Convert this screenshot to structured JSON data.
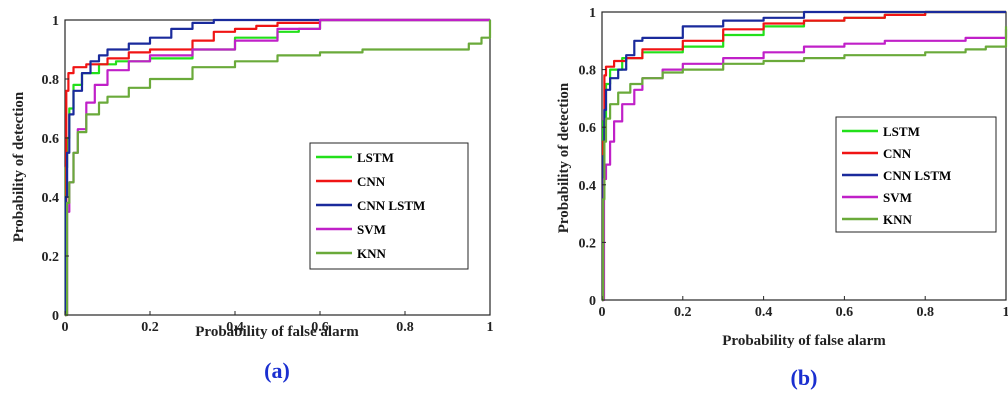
{
  "chart_data": [
    {
      "type": "line",
      "panel_label": "(a)",
      "xlabel": "Probability of false alarm",
      "ylabel": "Probability of detection",
      "xlim": [
        0,
        1
      ],
      "ylim": [
        0,
        1
      ],
      "xticks": [
        "0",
        "0.2",
        "0.4",
        "0.6",
        "0.8",
        "1"
      ],
      "yticks": [
        "0",
        "0.2",
        "0.4",
        "0.6",
        "0.8",
        "1"
      ],
      "grid": false,
      "legend_position": "center-right",
      "series": [
        {
          "name": "LSTM",
          "color": "#22e01a",
          "x": [
            0,
            0.002,
            0.005,
            0.01,
            0.02,
            0.04,
            0.08,
            0.12,
            0.2,
            0.3,
            0.4,
            0.5,
            0.55,
            0.6,
            0.8,
            1
          ],
          "y": [
            0,
            0.5,
            0.6,
            0.7,
            0.78,
            0.82,
            0.85,
            0.86,
            0.87,
            0.9,
            0.94,
            0.96,
            0.97,
            1.0,
            1.0,
            1.0
          ]
        },
        {
          "name": "CNN",
          "color": "#f01414",
          "x": [
            0,
            0.003,
            0.008,
            0.02,
            0.05,
            0.1,
            0.15,
            0.2,
            0.3,
            0.35,
            0.4,
            0.45,
            0.5,
            0.6,
            0.8,
            1
          ],
          "y": [
            0,
            0.76,
            0.82,
            0.84,
            0.85,
            0.87,
            0.89,
            0.9,
            0.93,
            0.96,
            0.97,
            0.98,
            0.99,
            1.0,
            1.0,
            1.0
          ]
        },
        {
          "name": "CNN LSTM",
          "color": "#1a2a9c",
          "x": [
            0,
            0.002,
            0.005,
            0.01,
            0.02,
            0.04,
            0.06,
            0.08,
            0.1,
            0.15,
            0.2,
            0.25,
            0.3,
            0.35,
            0.4,
            0.5,
            0.6,
            0.8,
            1
          ],
          "y": [
            0,
            0.4,
            0.55,
            0.68,
            0.76,
            0.82,
            0.86,
            0.88,
            0.9,
            0.92,
            0.94,
            0.97,
            0.99,
            1.0,
            1.0,
            1.0,
            1.0,
            1.0,
            1.0
          ]
        },
        {
          "name": "SVM",
          "color": "#c020c8",
          "x": [
            0,
            0.005,
            0.01,
            0.02,
            0.03,
            0.05,
            0.07,
            0.1,
            0.15,
            0.2,
            0.3,
            0.4,
            0.5,
            0.6,
            0.8,
            1
          ],
          "y": [
            0,
            0.35,
            0.45,
            0.55,
            0.63,
            0.72,
            0.78,
            0.83,
            0.86,
            0.88,
            0.9,
            0.93,
            0.97,
            1.0,
            1.0,
            1.0
          ]
        },
        {
          "name": "KNN",
          "color": "#6aaa3a",
          "x": [
            0,
            0.005,
            0.01,
            0.02,
            0.03,
            0.05,
            0.08,
            0.1,
            0.15,
            0.2,
            0.3,
            0.4,
            0.5,
            0.6,
            0.7,
            0.8,
            0.9,
            0.95,
            0.98,
            1
          ],
          "y": [
            0,
            0.38,
            0.45,
            0.55,
            0.62,
            0.68,
            0.72,
            0.74,
            0.77,
            0.8,
            0.84,
            0.86,
            0.88,
            0.89,
            0.9,
            0.9,
            0.9,
            0.92,
            0.94,
            1.0
          ]
        }
      ]
    },
    {
      "type": "line",
      "panel_label": "(b)",
      "xlabel": "Probability of false alarm",
      "ylabel": "Probability of detection",
      "xlim": [
        0,
        1
      ],
      "ylim": [
        0,
        1
      ],
      "xticks": [
        "0",
        "0.2",
        "0.4",
        "0.6",
        "0.8",
        "1"
      ],
      "yticks": [
        "0",
        "0.2",
        "0.4",
        "0.6",
        "0.8",
        "1"
      ],
      "grid": false,
      "legend_position": "center-right",
      "series": [
        {
          "name": "LSTM",
          "color": "#22e01a",
          "x": [
            0,
            0.003,
            0.01,
            0.02,
            0.05,
            0.1,
            0.2,
            0.3,
            0.4,
            0.5,
            0.6,
            0.7,
            0.8,
            1
          ],
          "y": [
            0,
            0.62,
            0.75,
            0.8,
            0.84,
            0.86,
            0.88,
            0.92,
            0.95,
            0.97,
            0.98,
            0.99,
            1.0,
            1.0
          ]
        },
        {
          "name": "CNN",
          "color": "#f01414",
          "x": [
            0,
            0.003,
            0.006,
            0.01,
            0.03,
            0.06,
            0.1,
            0.2,
            0.3,
            0.4,
            0.5,
            0.6,
            0.7,
            0.8,
            1
          ],
          "y": [
            0,
            0.55,
            0.78,
            0.81,
            0.83,
            0.84,
            0.87,
            0.9,
            0.94,
            0.96,
            0.97,
            0.98,
            0.99,
            1.0,
            1.0
          ]
        },
        {
          "name": "CNN LSTM",
          "color": "#1a2a9c",
          "x": [
            0,
            0.003,
            0.006,
            0.01,
            0.02,
            0.04,
            0.06,
            0.08,
            0.1,
            0.2,
            0.3,
            0.4,
            0.5,
            0.8,
            1
          ],
          "y": [
            0,
            0.5,
            0.66,
            0.73,
            0.77,
            0.8,
            0.85,
            0.9,
            0.91,
            0.95,
            0.97,
            0.98,
            1.0,
            1.0,
            1.0
          ]
        },
        {
          "name": "SVM",
          "color": "#c020c8",
          "x": [
            0,
            0.005,
            0.01,
            0.02,
            0.03,
            0.05,
            0.08,
            0.1,
            0.15,
            0.2,
            0.3,
            0.4,
            0.5,
            0.6,
            0.7,
            0.8,
            0.9,
            1
          ],
          "y": [
            0,
            0.42,
            0.47,
            0.55,
            0.62,
            0.68,
            0.73,
            0.77,
            0.8,
            0.82,
            0.84,
            0.86,
            0.88,
            0.89,
            0.9,
            0.9,
            0.91,
            0.94
          ]
        },
        {
          "name": "KNN",
          "color": "#6aaa3a",
          "x": [
            0,
            0.003,
            0.006,
            0.01,
            0.02,
            0.04,
            0.07,
            0.1,
            0.15,
            0.2,
            0.3,
            0.4,
            0.5,
            0.6,
            0.7,
            0.8,
            0.9,
            0.95,
            1
          ],
          "y": [
            0,
            0.35,
            0.55,
            0.63,
            0.68,
            0.72,
            0.75,
            0.77,
            0.79,
            0.8,
            0.82,
            0.83,
            0.84,
            0.85,
            0.85,
            0.86,
            0.87,
            0.88,
            0.95
          ]
        }
      ]
    }
  ]
}
